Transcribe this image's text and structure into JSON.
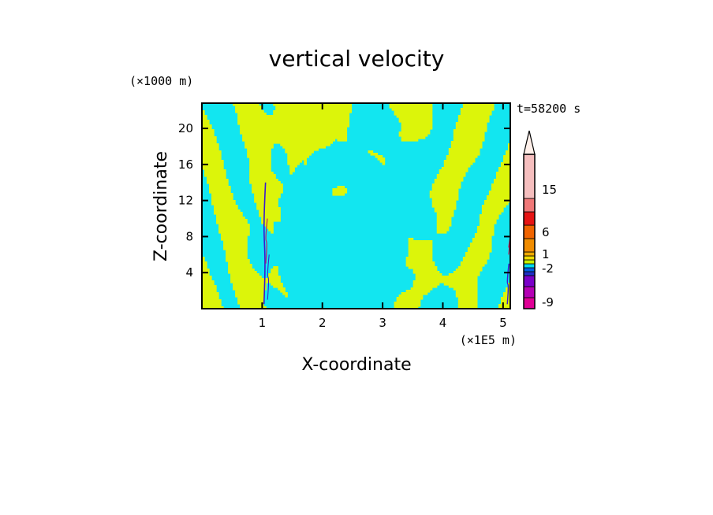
{
  "chart_data": {
    "type": "heatmap",
    "title": "vertical velocity",
    "xlabel": "X-coordinate",
    "ylabel": "Z-coordinate",
    "x_unit": "(×1E5 m)",
    "y_unit": "(×1000 m)",
    "time_label": "t=58200 s",
    "xlim": [
      0,
      5.12
    ],
    "ylim": [
      0,
      22.8
    ],
    "x_ticks": [
      "1",
      "2",
      "3",
      "4",
      "5"
    ],
    "y_ticks": [
      "4",
      "8",
      "12",
      "16",
      "20"
    ],
    "x_tick_values": [
      1,
      2,
      3,
      4,
      5
    ],
    "y_tick_values": [
      4,
      8,
      12,
      16,
      20
    ],
    "field_colors": {
      "positive": "#dcf50a",
      "negative": "#12e6f0",
      "strong_negative": "#3a1ad0",
      "strong_positive": "#c02060"
    },
    "colorbar": {
      "levels": [
        "-9",
        "-2",
        "1",
        "6",
        "15"
      ],
      "level_values": [
        -9,
        -2,
        1,
        6,
        15
      ],
      "colors": [
        "#e00096",
        "#b400b4",
        "#7a00c8",
        "#2030c8",
        "#0060e6",
        "#00dcf0",
        "#c8f000",
        "#f0dc00",
        "#f0aa00",
        "#f08c00",
        "#f06400",
        "#e61414",
        "#f07878",
        "#f5bebe"
      ],
      "extend_color": "#fff0ea"
    }
  }
}
